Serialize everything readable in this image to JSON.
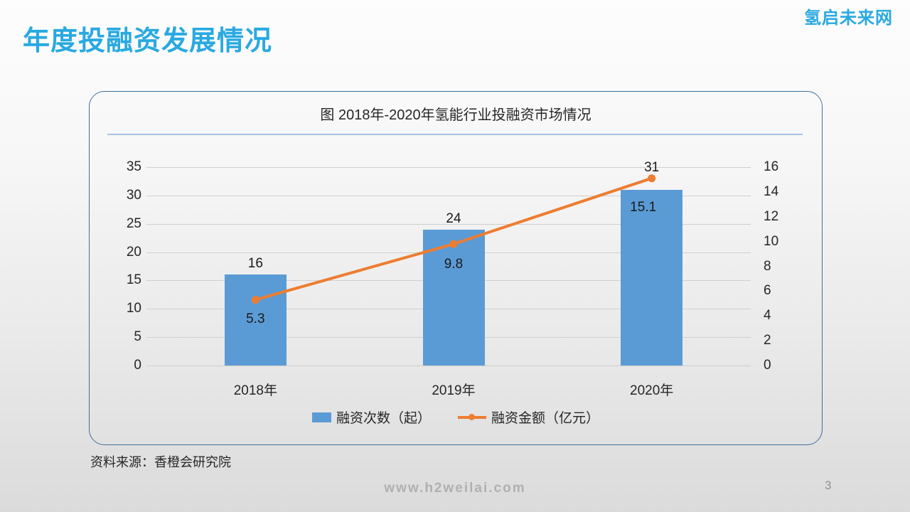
{
  "page": {
    "title": "年度投融资发展情况",
    "logo": "氢启未来网",
    "source_note": "资料来源：香橙会研究院",
    "footer_url": "www.h2weilai.com",
    "page_number": "3"
  },
  "colors": {
    "accent_blue": "#29A9E1",
    "bar_blue": "#5B9BD5",
    "line_orange": "#ED7D31",
    "card_border": "#41719C",
    "divider_blue": "#A6C3E2",
    "gridline_gray": "#CFCFCF",
    "footer_gray": "#B0B0B0"
  },
  "chart_data": {
    "type": "bar",
    "subtype": "combo-bar-line-dual-axis",
    "title": "图 2018年-2020年氢能行业投融资市场情况",
    "categories": [
      "2018年",
      "2019年",
      "2020年"
    ],
    "series": [
      {
        "name": "融资次数（起）",
        "chart": "bar",
        "axis": "left",
        "values": [
          16,
          24,
          31
        ],
        "color": "#5B9BD5"
      },
      {
        "name": "融资金额（亿元）",
        "chart": "line",
        "axis": "right",
        "values": [
          5.3,
          9.8,
          15.1
        ],
        "color": "#ED7D31"
      }
    ],
    "left_axis": {
      "min": 0,
      "max": 35,
      "step": 5,
      "ticks": [
        35,
        30,
        25,
        20,
        15,
        10,
        5,
        0
      ]
    },
    "right_axis": {
      "min": 0,
      "max": 16,
      "step": 2,
      "ticks": [
        16,
        14,
        12,
        10,
        8,
        6,
        4,
        2,
        0
      ]
    },
    "grid": true,
    "legend_position": "bottom"
  }
}
